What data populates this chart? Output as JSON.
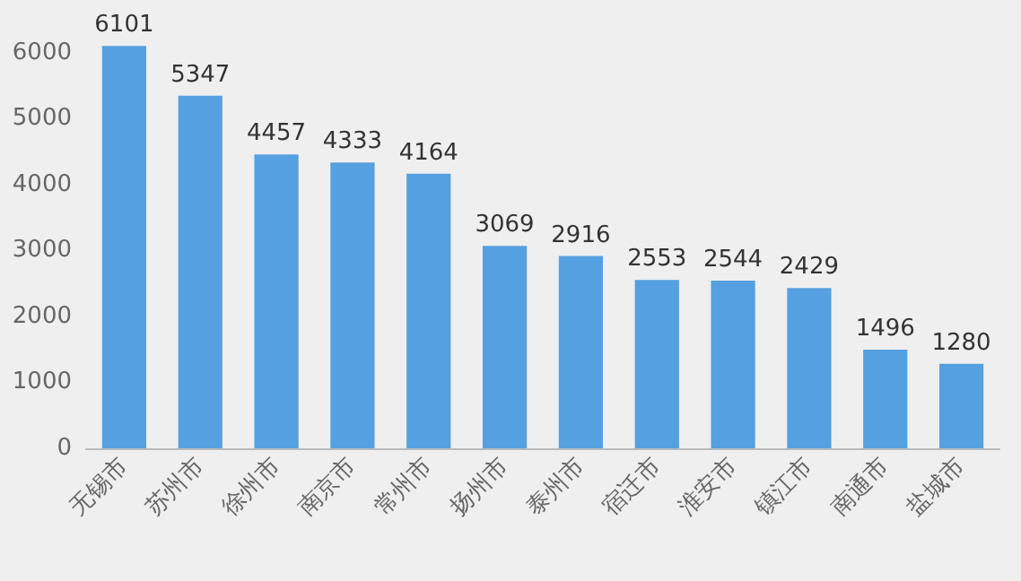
{
  "chart_data": {
    "type": "bar",
    "categories": [
      "无锡市",
      "苏州市",
      "徐州市",
      "南京市",
      "常州市",
      "扬州市",
      "泰州市",
      "宿迁市",
      "淮安市",
      "镇江市",
      "南通市",
      "盐城市"
    ],
    "values": [
      6101,
      5347,
      4457,
      4333,
      4164,
      3069,
      2916,
      2553,
      2544,
      2429,
      1496,
      1280
    ],
    "color": "#55a0e0",
    "ylim": [
      0,
      6200
    ],
    "yticks": [
      0,
      1000,
      2000,
      3000,
      4000,
      5000,
      6000
    ],
    "grid": false,
    "data_labels": true
  }
}
